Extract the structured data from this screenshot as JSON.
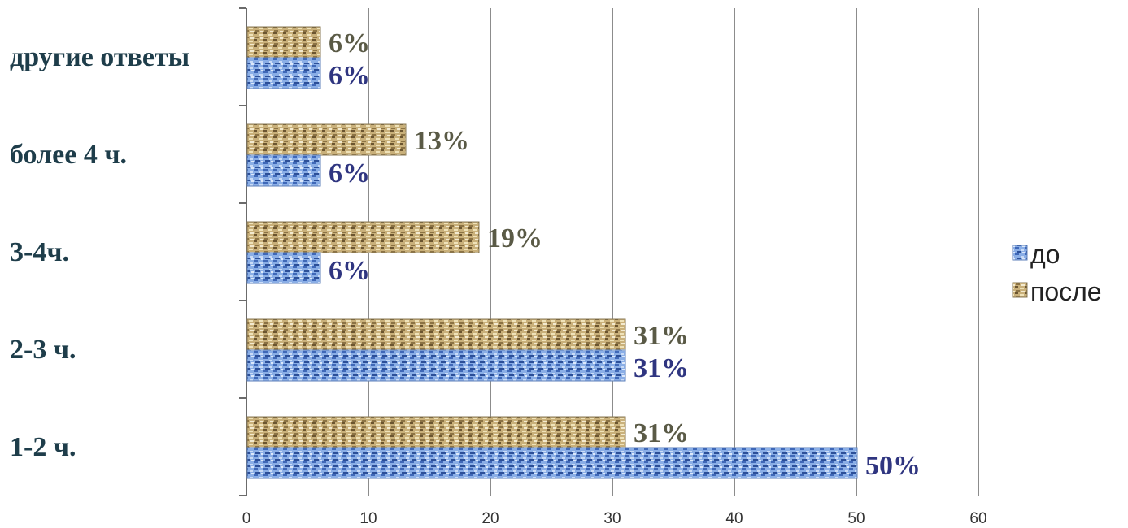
{
  "chart_data": {
    "type": "bar",
    "orientation": "horizontal",
    "categories": [
      "1-2 ч.",
      "2-3 ч.",
      "3-4ч.",
      "более 4 ч.",
      "другие ответы"
    ],
    "series": [
      {
        "name": "до",
        "values": [
          50,
          31,
          6,
          6,
          6
        ],
        "labels": [
          "50%",
          "31%",
          "6%",
          "6%",
          "6%"
        ],
        "color": "#6f96d6"
      },
      {
        "name": "после",
        "values": [
          31,
          31,
          19,
          13,
          6
        ],
        "labels": [
          "31%",
          "31%",
          "19%",
          "13%",
          "6%"
        ],
        "color": "#b8a06a"
      }
    ],
    "xlim": [
      0,
      60
    ],
    "xticks": [
      0,
      10,
      20,
      30,
      40,
      50,
      60
    ],
    "grid": "vertical",
    "legend": "right",
    "title": "",
    "xlabel": "",
    "ylabel": ""
  }
}
